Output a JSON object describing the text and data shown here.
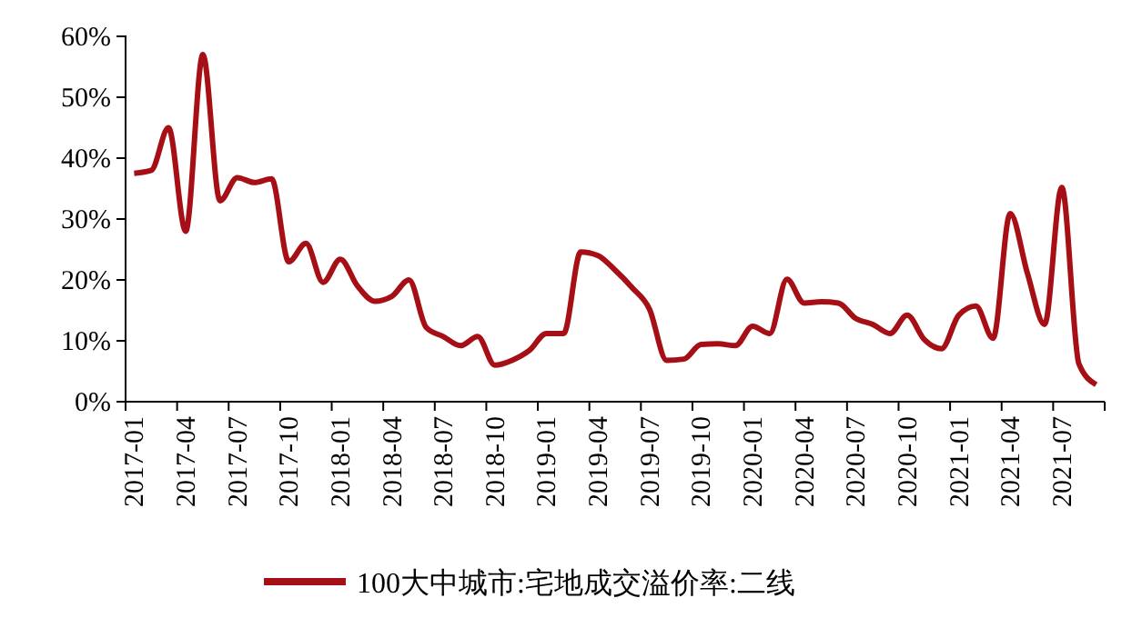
{
  "chart_data": {
    "type": "line",
    "categories": [
      "2017-01",
      null,
      null,
      "2017-04",
      null,
      null,
      "2017-07",
      null,
      null,
      "2017-10",
      null,
      null,
      "2018-01",
      null,
      null,
      "2018-04",
      null,
      null,
      "2018-07",
      null,
      null,
      "2018-10",
      null,
      null,
      "2019-01",
      null,
      null,
      "2019-04",
      null,
      null,
      "2019-07",
      null,
      null,
      "2019-10",
      null,
      null,
      "2020-01",
      null,
      null,
      "2020-04",
      null,
      null,
      "2020-07",
      null,
      null,
      "2020-10",
      null,
      null,
      "2021-01",
      null,
      null,
      "2021-04",
      null,
      null,
      "2021-07",
      null,
      null
    ],
    "series": [
      {
        "name": "100大中城市:宅地成交溢价率:二线",
        "color": "#a50f15",
        "values": [
          37.5,
          38,
          45,
          28,
          57,
          33,
          36.8,
          36,
          36.6,
          23,
          26,
          19.6,
          23.4,
          19,
          16.5,
          17.3,
          20,
          12.2,
          10.7,
          9.2,
          10.7,
          6,
          6.8,
          8.4,
          11.2,
          11.2,
          24.6,
          24,
          21.6,
          18.7,
          15.2,
          6.8,
          7,
          9.4,
          9.5,
          9.2,
          12.4,
          11.2,
          20.1,
          16.2,
          16.4,
          16.2,
          13.7,
          12.7,
          11.2,
          14.2,
          10.2,
          8.7,
          14.2,
          15.7,
          10.4,
          30.9,
          21.1,
          12.7,
          35.2,
          6.2,
          2.8
        ]
      }
    ],
    "ylim": [
      0,
      60
    ],
    "yticks": [
      {
        "value": 0,
        "label": "0%"
      },
      {
        "value": 10,
        "label": "10%"
      },
      {
        "value": 20,
        "label": "20%"
      },
      {
        "value": 30,
        "label": "30%"
      },
      {
        "value": 40,
        "label": "40%"
      },
      {
        "value": 50,
        "label": "50%"
      },
      {
        "value": 60,
        "label": "60%"
      }
    ],
    "grid": false,
    "legend": "bottom",
    "marker": "none",
    "line_style": "solid"
  }
}
